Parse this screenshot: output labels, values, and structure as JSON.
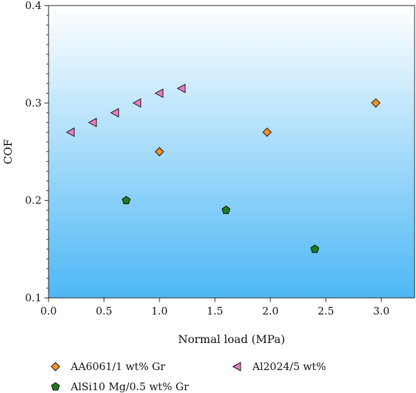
{
  "chart_data": {
    "type": "scatter",
    "xlabel": "Normal load (MPa)",
    "ylabel": "COF",
    "xlim": [
      0.0,
      3.3
    ],
    "ylim": [
      0.1,
      0.4
    ],
    "x_ticks": [
      "0.0",
      "0.5",
      "1.0",
      "1.5",
      "2.0",
      "2.5",
      "3.0"
    ],
    "y_ticks": [
      "0.1",
      "0.2",
      "0.3",
      "0.4"
    ],
    "grid": false,
    "legend_position": "bottom",
    "background_gradient": [
      "#ffffff",
      "#4db8f5"
    ],
    "series": [
      {
        "name": "AA6061/1 wt% Gr",
        "marker": "diamond",
        "color": "#f0912a",
        "points": [
          [
            1.0,
            0.25
          ],
          [
            1.97,
            0.27
          ],
          [
            2.95,
            0.3
          ]
        ]
      },
      {
        "name": "AlSi10 Mg/0.5 wt% Gr",
        "marker": "pentagon",
        "color": "#1e7a1e",
        "points": [
          [
            0.7,
            0.2
          ],
          [
            1.6,
            0.19
          ],
          [
            2.4,
            0.15
          ]
        ]
      },
      {
        "name": "Al2024/5 wt%",
        "marker": "triangle-left",
        "color": "#ee7bbf",
        "points": [
          [
            0.2,
            0.27
          ],
          [
            0.4,
            0.28
          ],
          [
            0.6,
            0.29
          ],
          [
            0.8,
            0.3
          ],
          [
            1.0,
            0.31
          ],
          [
            1.2,
            0.315
          ]
        ]
      }
    ]
  }
}
